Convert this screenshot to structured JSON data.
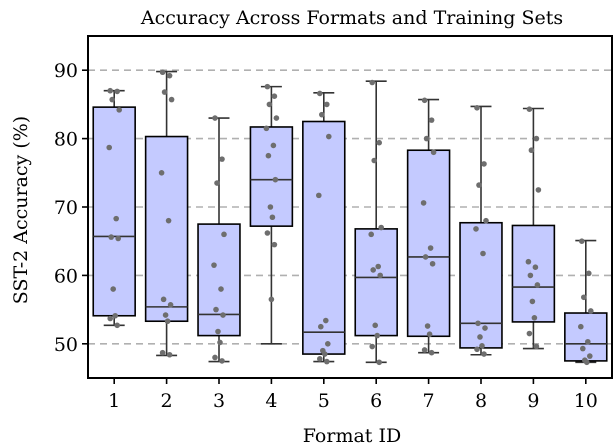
{
  "chart_data": {
    "type": "box",
    "title": "Accuracy Across Formats and Training Sets",
    "xlabel": "Format ID",
    "ylabel": "SST-2 Accuracy (%)",
    "ylim": [
      45,
      95
    ],
    "yticks": [
      50,
      60,
      70,
      80,
      90
    ],
    "grid": true,
    "categories": [
      "1",
      "2",
      "3",
      "4",
      "5",
      "6",
      "7",
      "8",
      "9",
      "10"
    ],
    "series_color": "#c4caff",
    "boxes": [
      {
        "min": 52.7,
        "q1": 54.1,
        "median": 65.7,
        "q3": 84.6,
        "max": 87.0,
        "points": [
          87.0,
          86.9,
          85.7,
          84.2,
          78.7,
          68.3,
          65.6,
          65.4,
          58.0,
          54.1,
          53.7,
          52.7
        ]
      },
      {
        "min": 48.3,
        "q1": 53.3,
        "median": 55.4,
        "q3": 80.3,
        "max": 89.8,
        "points": [
          89.7,
          89.2,
          86.8,
          85.7,
          75.0,
          68.0,
          56.5,
          55.7,
          54.2,
          53.3,
          48.7,
          48.4
        ]
      },
      {
        "min": 47.4,
        "q1": 51.2,
        "median": 54.3,
        "q3": 67.5,
        "max": 83.0,
        "points": [
          83.0,
          77.0,
          73.5,
          66.0,
          61.5,
          58.0,
          55.0,
          54.2,
          51.8,
          50.2,
          48.0,
          47.5
        ]
      },
      {
        "min": 50.0,
        "q1": 67.2,
        "median": 74.0,
        "q3": 81.7,
        "max": 87.6,
        "points": [
          87.6,
          86.2,
          85.0,
          83.0,
          81.5,
          79.0,
          77.5,
          74.0,
          70.0,
          68.5,
          66.2,
          64.5,
          56.5
        ]
      },
      {
        "min": 47.4,
        "q1": 48.5,
        "median": 51.7,
        "q3": 82.5,
        "max": 86.7,
        "points": [
          86.6,
          85.0,
          83.5,
          80.3,
          71.7,
          53.4,
          52.5,
          50.0,
          49.0,
          48.5,
          47.8,
          47.4
        ]
      },
      {
        "min": 47.3,
        "q1": 51.2,
        "median": 59.7,
        "q3": 66.8,
        "max": 88.4,
        "points": [
          88.2,
          79.4,
          76.8,
          67.0,
          66.0,
          61.3,
          60.8,
          60.0,
          52.7,
          51.2,
          49.6,
          47.3
        ]
      },
      {
        "min": 48.7,
        "q1": 51.1,
        "median": 62.7,
        "q3": 78.3,
        "max": 85.7,
        "points": [
          85.6,
          82.7,
          80.0,
          78.0,
          70.6,
          64.0,
          62.7,
          61.7,
          52.6,
          51.4,
          49.1,
          48.7
        ]
      },
      {
        "min": 48.4,
        "q1": 49.4,
        "median": 53.0,
        "q3": 67.7,
        "max": 84.7,
        "points": [
          84.5,
          76.3,
          73.2,
          68.0,
          66.8,
          63.2,
          53.0,
          52.3,
          51.0,
          49.7,
          49.2,
          48.5
        ]
      },
      {
        "min": 49.3,
        "q1": 53.2,
        "median": 58.3,
        "q3": 67.3,
        "max": 84.4,
        "points": [
          84.3,
          80.0,
          78.3,
          72.5,
          62.0,
          61.2,
          60.0,
          58.6,
          56.2,
          53.8,
          51.5,
          49.6
        ]
      },
      {
        "min": 47.3,
        "q1": 47.5,
        "median": 50.0,
        "q3": 54.5,
        "max": 65.1,
        "points": [
          65.0,
          60.3,
          56.8,
          54.8,
          52.5,
          50.3,
          49.3,
          48.2,
          47.6,
          47.3
        ]
      }
    ]
  }
}
